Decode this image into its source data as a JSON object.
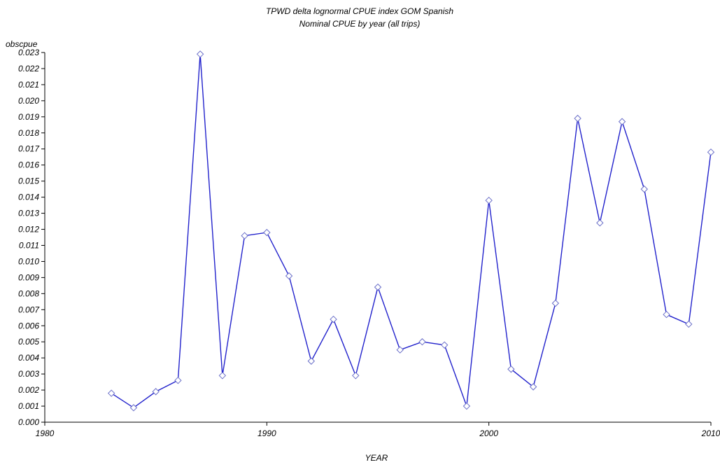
{
  "chart_data": {
    "type": "line",
    "title": "TPWD delta lognormal CPUE index GOM Spanish",
    "subtitle": "Nominal CPUE by year (all trips)",
    "xlabel": "YEAR",
    "ylabel": "obscpue",
    "xlim": [
      1980,
      2010
    ],
    "ylim": [
      0.0,
      0.023
    ],
    "x_ticks": [
      1980,
      1990,
      2000,
      2010
    ],
    "y_ticks": [
      "0.000",
      "0.001",
      "0.002",
      "0.003",
      "0.004",
      "0.005",
      "0.006",
      "0.007",
      "0.008",
      "0.009",
      "0.010",
      "0.011",
      "0.012",
      "0.013",
      "0.014",
      "0.015",
      "0.016",
      "0.017",
      "0.018",
      "0.019",
      "0.020",
      "0.021",
      "0.022",
      "0.023"
    ],
    "grid": false,
    "legend": "none",
    "line_color": "#2222cc",
    "marker": "diamond",
    "x": [
      1983,
      1984,
      1985,
      1986,
      1987,
      1988,
      1989,
      1990,
      1991,
      1992,
      1993,
      1994,
      1995,
      1996,
      1997,
      1998,
      1999,
      2000,
      2001,
      2002,
      2003,
      2004,
      2005,
      2006,
      2007,
      2008,
      2009,
      2010
    ],
    "y": [
      0.0018,
      0.0009,
      0.0019,
      0.0026,
      0.0229,
      0.0029,
      0.0116,
      0.0118,
      0.0091,
      0.0038,
      0.0064,
      0.0029,
      0.0084,
      0.0045,
      0.005,
      0.0048,
      0.001,
      0.0138,
      0.0033,
      0.0022,
      0.0074,
      0.0189,
      0.0124,
      0.0187,
      0.0145,
      0.0067,
      0.0061,
      0.0168
    ]
  }
}
